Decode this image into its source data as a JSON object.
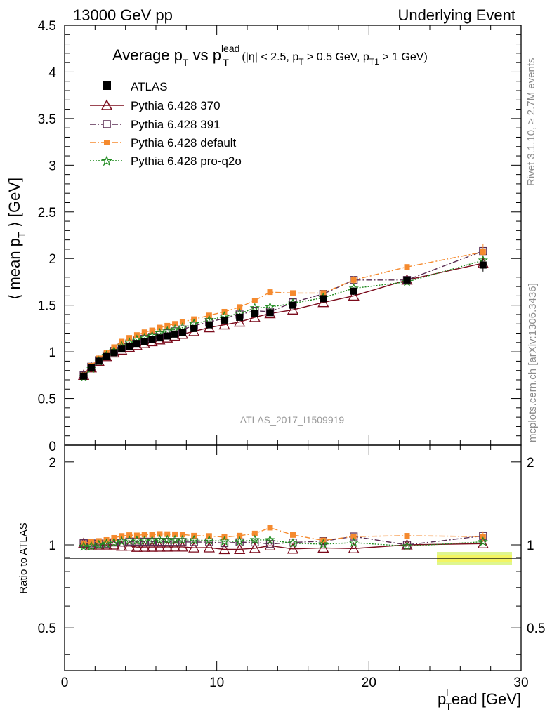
{
  "header": {
    "left": "13000 GeV pp",
    "right": "Underlying Event"
  },
  "title": {
    "main": "Average p",
    "main_sub": "T",
    "vs": " vs p",
    "vs_sub": "T",
    "vs_sup": "lead",
    "cuts_a": " (|η| < 2.5, p",
    "cuts_a_sub": "T",
    "cuts_b": " > 0.5 GeV, p",
    "cuts_b_sub": "T1",
    "cuts_c": " > 1 GeV)"
  },
  "side_labels": {
    "rivet": "Rivet 3.1.10, ≥ 2.7M events",
    "mcplots": "mcplots.cern.ch [arXiv:1306.3436]"
  },
  "watermark": "ATLAS_2017_I1509919",
  "axes": {
    "ylabel_main_a": "⟨ mean p",
    "ylabel_main_sub": "T",
    "ylabel_main_b": " ⟩ [GeV]",
    "ylabel_ratio": "Ratio to ATLAS",
    "xlabel_a": "p",
    "xlabel_sub": "T",
    "xlabel_sup": "l",
    "xlabel_b": "ead [GeV]"
  },
  "legend": {
    "atlas": "ATLAS",
    "s370": "Pythia 6.428 370",
    "s391": "Pythia 6.428 391",
    "sdef": "Pythia 6.428 default",
    "sq2o": "Pythia 6.428 pro-q2o"
  },
  "chart_data": {
    "type": "line",
    "xlim": [
      0,
      30
    ],
    "ylim": [
      0,
      4.5
    ],
    "ratio_ylim": [
      0.35,
      2.3
    ],
    "x_ticks": [
      0,
      10,
      20,
      30
    ],
    "y_ticks": [
      0.5,
      1,
      1.5,
      2,
      2.5,
      3,
      3.5,
      4,
      4.5
    ],
    "y_tick_labels": [
      "0.5",
      "1",
      "1.5",
      "2",
      "2.5",
      "3",
      "3.5",
      "4",
      "4.5"
    ],
    "ratio_ticks": [
      0.5,
      1,
      2
    ],
    "x": [
      1.25,
      1.75,
      2.25,
      2.75,
      3.25,
      3.75,
      4.25,
      4.75,
      5.25,
      5.75,
      6.25,
      6.75,
      7.25,
      7.75,
      8.5,
      9.5,
      10.5,
      11.5,
      12.5,
      13.5,
      15.0,
      17.0,
      19.0,
      22.5,
      27.5
    ],
    "series": [
      {
        "name": "ATLAS",
        "color": "#000000",
        "values": [
          0.74,
          0.83,
          0.9,
          0.95,
          0.99,
          1.03,
          1.06,
          1.09,
          1.11,
          1.13,
          1.15,
          1.17,
          1.19,
          1.21,
          1.25,
          1.29,
          1.34,
          1.37,
          1.41,
          1.42,
          1.5,
          1.57,
          1.65,
          1.77,
          1.93
        ],
        "errors": [
          0.01,
          0.01,
          0.01,
          0.01,
          0.01,
          0.01,
          0.01,
          0.01,
          0.01,
          0.01,
          0.01,
          0.01,
          0.01,
          0.01,
          0.01,
          0.01,
          0.01,
          0.02,
          0.02,
          0.02,
          0.02,
          0.03,
          0.04,
          0.05,
          0.07
        ]
      },
      {
        "name": "Pythia 6.428 370",
        "color": "#7b0b1c",
        "values": [
          0.75,
          0.83,
          0.9,
          0.95,
          0.99,
          1.02,
          1.05,
          1.07,
          1.09,
          1.11,
          1.13,
          1.15,
          1.17,
          1.19,
          1.22,
          1.26,
          1.29,
          1.32,
          1.37,
          1.41,
          1.45,
          1.53,
          1.6,
          1.77,
          1.95
        ]
      },
      {
        "name": "Pythia 6.428 391",
        "color": "#5a2c52",
        "values": [
          0.75,
          0.84,
          0.91,
          0.96,
          1.01,
          1.05,
          1.09,
          1.12,
          1.14,
          1.16,
          1.18,
          1.2,
          1.22,
          1.24,
          1.28,
          1.32,
          1.36,
          1.4,
          1.44,
          1.43,
          1.53,
          1.62,
          1.77,
          1.77,
          2.08
        ]
      },
      {
        "name": "Pythia 6.428 default",
        "color": "#f58a2e",
        "values": [
          0.75,
          0.85,
          0.93,
          0.99,
          1.05,
          1.11,
          1.15,
          1.18,
          1.21,
          1.23,
          1.26,
          1.28,
          1.3,
          1.32,
          1.35,
          1.39,
          1.43,
          1.48,
          1.55,
          1.64,
          1.63,
          1.63,
          1.77,
          1.91,
          2.07
        ],
        "errors": [
          0.005,
          0.005,
          0.005,
          0.005,
          0.005,
          0.005,
          0.005,
          0.005,
          0.005,
          0.005,
          0.005,
          0.005,
          0.005,
          0.005,
          0.01,
          0.01,
          0.01,
          0.01,
          0.01,
          0.02,
          0.02,
          0.03,
          0.04,
          0.05,
          0.09
        ]
      },
      {
        "name": "Pythia 6.428 pro-q2o",
        "color": "#1f8a1f",
        "values": [
          0.73,
          0.82,
          0.9,
          0.96,
          1.01,
          1.06,
          1.1,
          1.13,
          1.15,
          1.17,
          1.2,
          1.22,
          1.24,
          1.26,
          1.3,
          1.34,
          1.38,
          1.41,
          1.47,
          1.48,
          1.52,
          1.58,
          1.68,
          1.75,
          1.98
        ]
      }
    ]
  }
}
